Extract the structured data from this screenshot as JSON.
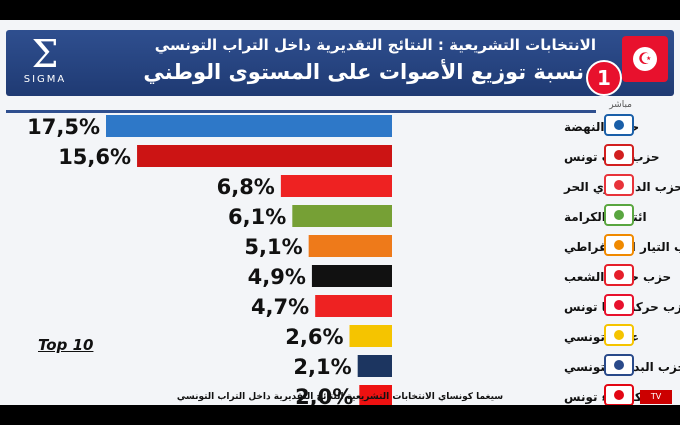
{
  "header": {
    "line1": "الانتخابات التشريعية : النتائج التقديرية داخل التراب التونسي",
    "line2": "نسبة توزيع الأصوات على المستوى الوطني",
    "sigma_mark": "Σ",
    "sigma_name": "SIGMA",
    "badge": "1",
    "tv_label": "مباشر"
  },
  "top10_label": "Top 10",
  "footer": "سيغما كونساي   الانتخابات التشريعية   النتائج التقديرية داخل التراب التونسي",
  "chart_data": {
    "type": "bar",
    "orientation": "horizontal",
    "categories": [
      "حركة النهضة",
      "حزب قلب تونس",
      "الحزب الدستوري الحر",
      "ائتلاف الكرامة",
      "حزب التيار الديمقراطي",
      "حزب حركة الشعب",
      "حزب حركة تحيا تونس",
      "عيش تونسي",
      "حزب البديل التونسي",
      "حركة نداء تونس"
    ],
    "value_labels": [
      "17,5%",
      "15,6%",
      "6,8%",
      "6,1%",
      "5,1%",
      "4,9%",
      "4,7%",
      "2,6%",
      "2,1%",
      "2,0%"
    ],
    "values": [
      17.5,
      15.6,
      6.8,
      6.1,
      5.1,
      4.9,
      4.7,
      2.6,
      2.1,
      2.0
    ],
    "colors": [
      "#2e78c8",
      "#cc1414",
      "#ee2222",
      "#76a035",
      "#ee7a1a",
      "#111111",
      "#ee2222",
      "#f5c400",
      "#1c3560",
      "#ee1111"
    ],
    "logo_colors": [
      "#1a5fa8",
      "#d21f1f",
      "#e8333a",
      "#5aa640",
      "#f08a00",
      "#e61e2a",
      "#e8112d",
      "#f5c400",
      "#2a4a8a",
      "#e30613"
    ],
    "unit": "%"
  }
}
